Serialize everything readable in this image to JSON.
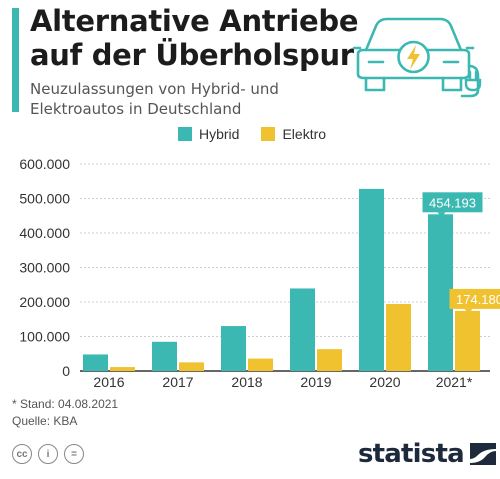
{
  "header": {
    "title_line1": "Alternative Antriebe",
    "title_line2": "auf der Überholspur",
    "subtitle_line1": "Neuzulassungen von Hybrid- und",
    "subtitle_line2": "Elektroautos in Deutschland"
  },
  "colors": {
    "hybrid": "#3cb8b2",
    "elektro": "#f0c230",
    "accent": "#3cb8b2",
    "icon": "#3cb8b2",
    "bolt": "#f0c230"
  },
  "icons": [
    "electric-car-icon",
    "creative-commons-icon",
    "attribution-icon",
    "no-derivatives-icon",
    "statista-logo-icon"
  ],
  "chart_data": {
    "type": "bar",
    "categories": [
      "2016",
      "2017",
      "2018",
      "2019",
      "2020",
      "2021*"
    ],
    "series": [
      {
        "name": "Hybrid",
        "values": [
          47996,
          84675,
          130258,
          239250,
          527864,
          454193
        ]
      },
      {
        "name": "Elektro",
        "values": [
          11410,
          25056,
          36062,
          63281,
          194163,
          174180
        ]
      }
    ],
    "ylim": [
      0,
      600000
    ],
    "yticks": [
      "0",
      "100.000",
      "200.000",
      "300.000",
      "400.000",
      "500.000",
      "600.000"
    ],
    "callouts": [
      {
        "series": 0,
        "index": 5,
        "label": "454.193"
      },
      {
        "series": 1,
        "index": 5,
        "label": "174.180"
      }
    ],
    "grid": true,
    "legend_position": "top-center"
  },
  "footer": {
    "note": "* Stand: 04.08.2021",
    "source": "Quelle: KBA",
    "cc_icons": [
      "cc",
      "i",
      "="
    ],
    "brand": "statista"
  }
}
